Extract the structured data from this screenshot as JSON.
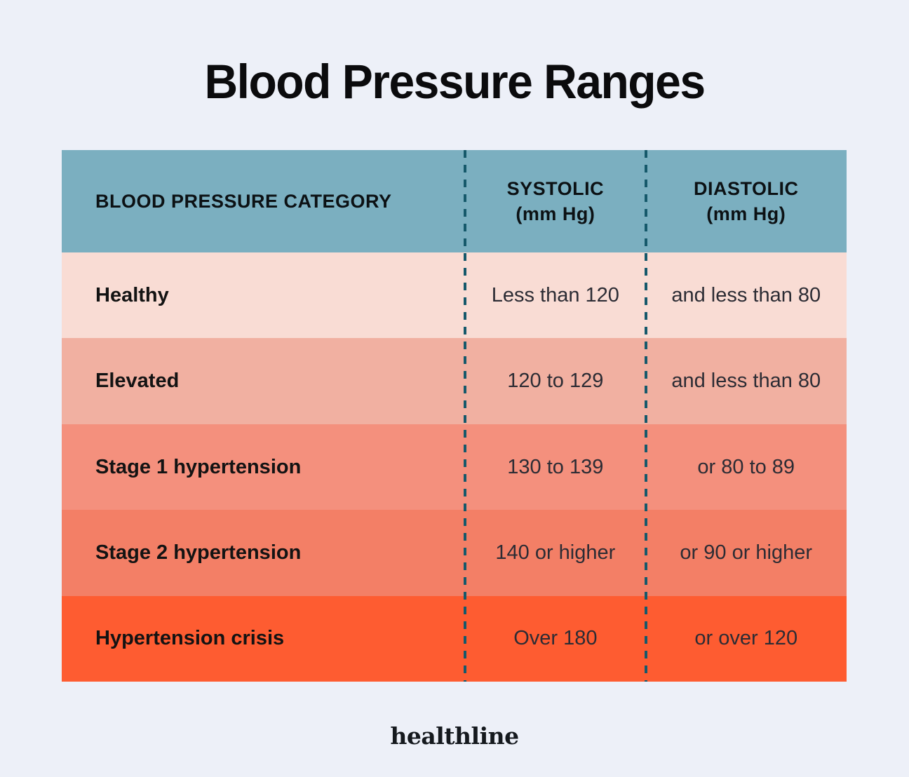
{
  "page": {
    "title": "Blood Pressure Ranges",
    "brand": "healthline"
  },
  "colors": {
    "background": "#edf0f8",
    "header_teal": "#7bafc0",
    "divider_teal": "#16596b",
    "title_text": "#0b0b0d",
    "value_text": "#2c2c34",
    "category_text": "#131313"
  },
  "table": {
    "header": {
      "category": "BLOOD PRESSURE CATEGORY",
      "systolic_label": "SYSTOLIC",
      "systolic_unit": "(mm Hg)",
      "diastolic_label": "DIASTOLIC",
      "diastolic_unit": "(mm Hg)"
    },
    "rows": [
      {
        "category": "Healthy",
        "systolic": "Less than 120",
        "diastolic": "and less than 80",
        "color": "#f9dcd4"
      },
      {
        "category": "Elevated",
        "systolic": "120 to 129",
        "diastolic": "and less than 80",
        "color": "#f1b0a1"
      },
      {
        "category": "Stage 1 hypertension",
        "systolic": "130 to 139",
        "diastolic": "or 80 to 89",
        "color": "#f4907d"
      },
      {
        "category": "Stage 2 hypertension",
        "systolic": "140 or higher",
        "diastolic": "or 90 or higher",
        "color": "#f37f66"
      },
      {
        "category": "Hypertension crisis",
        "systolic": "Over 180",
        "diastolic": "or over 120",
        "color": "#fe5c31"
      }
    ]
  },
  "chart_data": {
    "type": "table",
    "title": "Blood Pressure Ranges",
    "columns": [
      "BLOOD PRESSURE CATEGORY",
      "SYSTOLIC (mm Hg)",
      "DIASTOLIC (mm Hg)"
    ],
    "rows": [
      [
        "Healthy",
        "Less than 120",
        "and less than 80"
      ],
      [
        "Elevated",
        "120 to 129",
        "and less than 80"
      ],
      [
        "Stage 1 hypertension",
        "130 to 139",
        "or 80 to 89"
      ],
      [
        "Stage 2 hypertension",
        "140 or higher",
        "or 90 or higher"
      ],
      [
        "Hypertension crisis",
        "Over 180",
        "or over 120"
      ]
    ],
    "source_brand": "healthline"
  }
}
